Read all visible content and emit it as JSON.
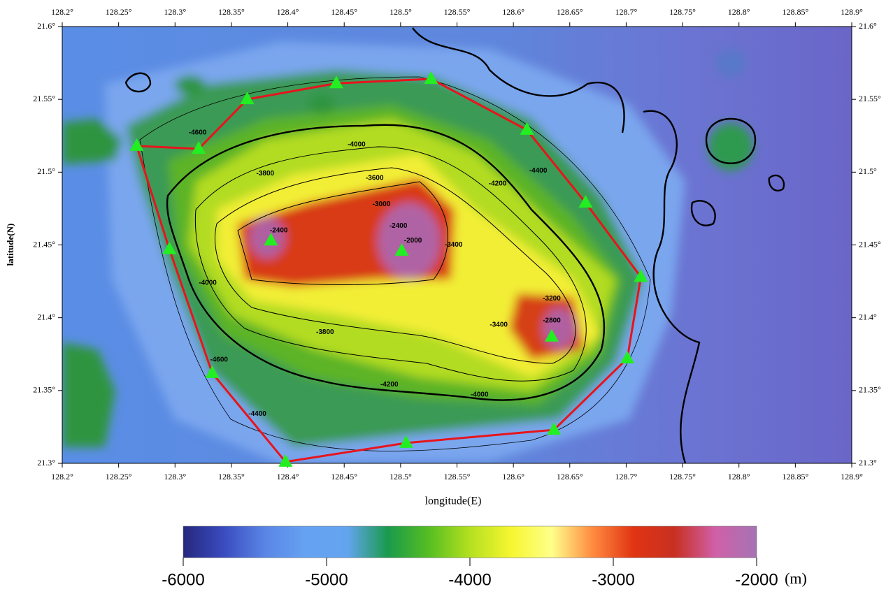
{
  "chart_data": {
    "type": "map",
    "xlabel": "longitude(E)",
    "ylabel": "latitude(N)",
    "xlim": [
      128.2,
      128.9
    ],
    "ylim": [
      21.3,
      21.6
    ],
    "xticks": [
      {
        "value": 128.2,
        "label": "128.2°"
      },
      {
        "value": 128.25,
        "label": "128.25°"
      },
      {
        "value": 128.3,
        "label": "128.3°"
      },
      {
        "value": 128.35,
        "label": "128.35°"
      },
      {
        "value": 128.4,
        "label": "128.4°"
      },
      {
        "value": 128.45,
        "label": "128.45°"
      },
      {
        "value": 128.5,
        "label": "128.5°"
      },
      {
        "value": 128.55,
        "label": "128.55°"
      },
      {
        "value": 128.6,
        "label": "128.6°"
      },
      {
        "value": 128.65,
        "label": "128.65°"
      },
      {
        "value": 128.7,
        "label": "128.7°"
      },
      {
        "value": 128.75,
        "label": "128.75°"
      },
      {
        "value": 128.8,
        "label": "128.8°"
      },
      {
        "value": 128.85,
        "label": "128.85°"
      },
      {
        "value": 128.9,
        "label": "128.9°"
      }
    ],
    "yticks": [
      {
        "value": 21.3,
        "label": "21.3°"
      },
      {
        "value": 21.35,
        "label": "21.35°"
      },
      {
        "value": 21.4,
        "label": "21.4°"
      },
      {
        "value": 21.45,
        "label": "21.45°"
      },
      {
        "value": 21.5,
        "label": "21.5°"
      },
      {
        "value": 21.55,
        "label": "21.55°"
      },
      {
        "value": 21.6,
        "label": "21.6°"
      }
    ],
    "series": [
      {
        "color": "#22ee22",
        "line_color": "#e8141c",
        "closed": true,
        "x": [
          128.266,
          128.321,
          128.364,
          128.443,
          128.527,
          128.612,
          128.664,
          128.713,
          128.701,
          128.636,
          128.505,
          128.398,
          128.333,
          128.295
        ],
        "y": [
          21.518,
          21.516,
          21.55,
          21.561,
          21.564,
          21.529,
          21.479,
          21.428,
          21.372,
          21.323,
          21.314,
          21.301,
          21.362,
          21.447
        ]
      },
      {
        "color": "#22ee22",
        "x": [
          128.385,
          128.501,
          128.634
        ],
        "y": [
          21.453,
          21.446,
          21.387
        ]
      }
    ],
    "contour_labels": [
      {
        "value": -4000,
        "x": 128.461,
        "y": 21.519
      },
      {
        "value": -3800,
        "x": 128.38,
        "y": 21.499
      },
      {
        "value": -3600,
        "x": 128.477,
        "y": 21.496
      },
      {
        "value": -3000,
        "x": 128.483,
        "y": 21.478
      },
      {
        "value": -2400,
        "x": 128.498,
        "y": 21.463
      },
      {
        "value": -2000,
        "x": 128.511,
        "y": 21.453
      },
      {
        "value": -3400,
        "x": 128.547,
        "y": 21.45
      },
      {
        "value": -2400,
        "x": 128.392,
        "y": 21.46
      },
      {
        "value": -4600,
        "x": 128.32,
        "y": 21.527
      },
      {
        "value": -4400,
        "x": 128.622,
        "y": 21.501
      },
      {
        "value": -4200,
        "x": 128.586,
        "y": 21.492
      },
      {
        "value": -4000,
        "x": 128.329,
        "y": 21.424
      },
      {
        "value": -3800,
        "x": 128.433,
        "y": 21.39
      },
      {
        "value": -3200,
        "x": 128.634,
        "y": 21.413
      },
      {
        "value": -3400,
        "x": 128.587,
        "y": 21.395
      },
      {
        "value": -2800,
        "x": 128.634,
        "y": 21.398
      },
      {
        "value": -4600,
        "x": 128.339,
        "y": 21.371
      },
      {
        "value": -4400,
        "x": 128.373,
        "y": 21.334
      },
      {
        "value": -4200,
        "x": 128.49,
        "y": 21.354
      },
      {
        "value": -4000,
        "x": 128.57,
        "y": 21.347
      }
    ],
    "colorbar": {
      "range": [
        -6000,
        -2000
      ],
      "ticks": [
        -6000,
        -5000,
        -4000,
        -3000,
        -2000
      ],
      "unit": "(m)",
      "colors": [
        "#26287e",
        "#3a4cc0",
        "#5a86e6",
        "#66a2f2",
        "#63a4f0",
        "#1a9a4c",
        "#56be22",
        "#b4e020",
        "#f6f630",
        "#ffff8a",
        "#ff8a40",
        "#e03412",
        "#c83022",
        "#d060a8",
        "#a474b4"
      ]
    }
  }
}
